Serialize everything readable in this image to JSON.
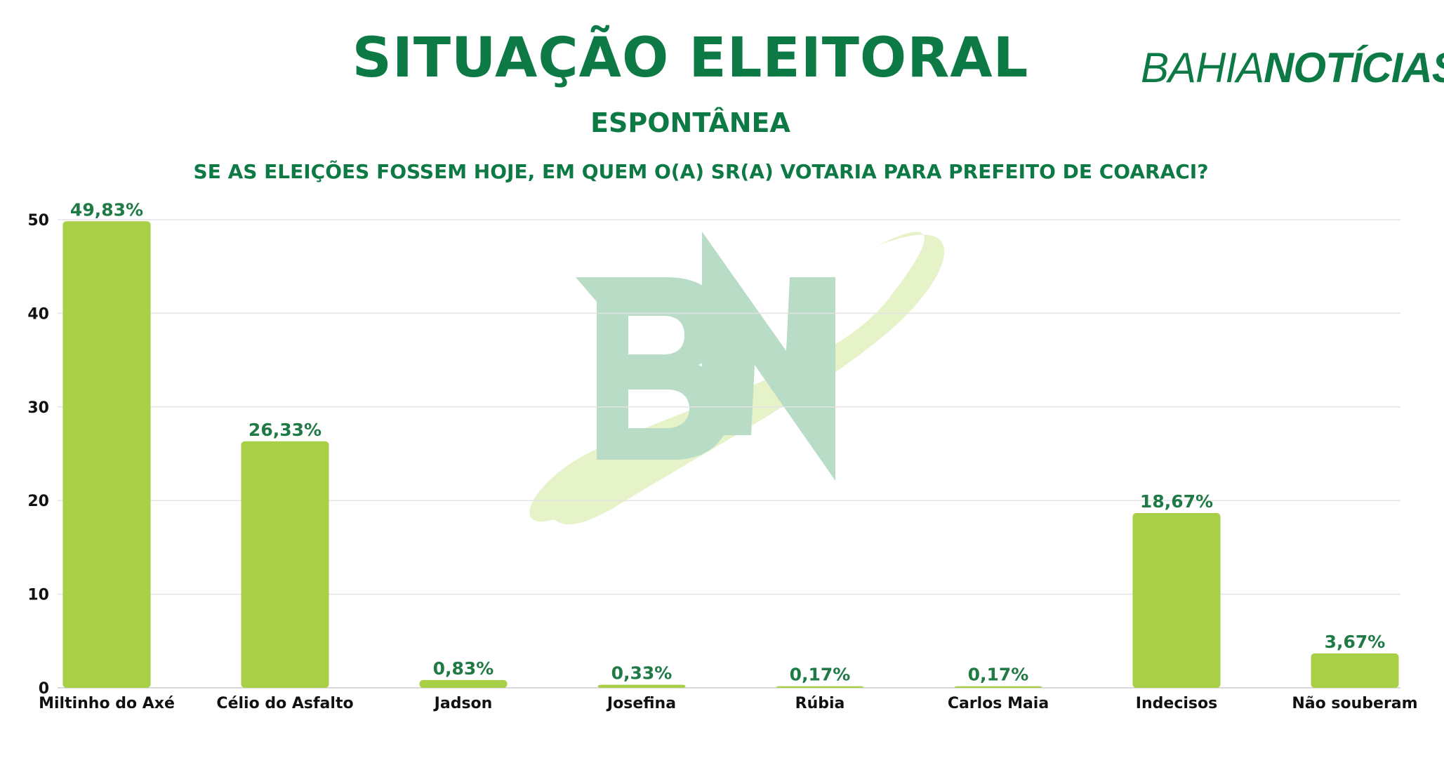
{
  "header": {
    "title": "SITUAÇÃO ELEITORAL",
    "subtitle": "ESPONTÂNEA",
    "question": "SE AS ELEIÇÕES FOSSEM HOJE, EM QUEM O(A) SR(A) VOTARIA PARA PREFEITO DE COARACI?"
  },
  "logo": {
    "part1": "BAHIA",
    "part2": "NOTÍCIAS"
  },
  "chart_data": {
    "type": "bar",
    "title": "SITUAÇÃO ELEITORAL",
    "categories": [
      "Miltinho do Axé",
      "Célio do Asfalto",
      "Jadson",
      "Josefina",
      "Rúbia",
      "Carlos Maia",
      "Indecisos",
      "Não souberam"
    ],
    "values": [
      49.83,
      26.33,
      0.83,
      0.33,
      0.17,
      0.17,
      18.67,
      3.67
    ],
    "data_labels": [
      "49,83%",
      "26,33%",
      "0,83%",
      "0,33%",
      "0,17%",
      "0,17%",
      "18,67%",
      "3,67%"
    ],
    "yticks": [
      0,
      10,
      20,
      30,
      40,
      50
    ],
    "ylim": [
      0,
      50
    ],
    "grid": true,
    "legend": "none",
    "bar_color": "#a8cf45",
    "label_color": "#1f7a45"
  },
  "colors": {
    "brand": "#0d7a45",
    "bar": "#a8cf45"
  }
}
